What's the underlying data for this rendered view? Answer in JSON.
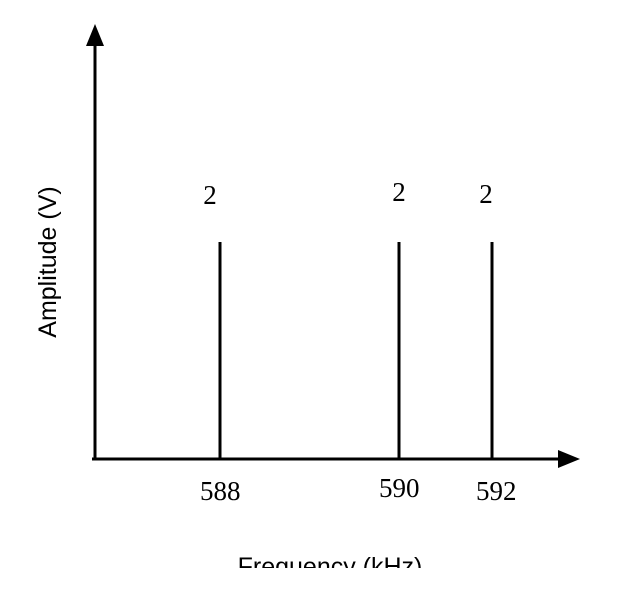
{
  "chart_data": {
    "type": "bar",
    "subtype": "line-spectrum",
    "xlabel": "Frequency (kHz)",
    "ylabel": "Amplitude (V)",
    "x": [
      588,
      590,
      592
    ],
    "tick_labels": [
      "588",
      "590",
      "592"
    ],
    "values": [
      2,
      2,
      2
    ],
    "data_labels": [
      "2",
      "2",
      "2"
    ],
    "grid": false,
    "axis_arrows": true,
    "color": "#000000"
  }
}
